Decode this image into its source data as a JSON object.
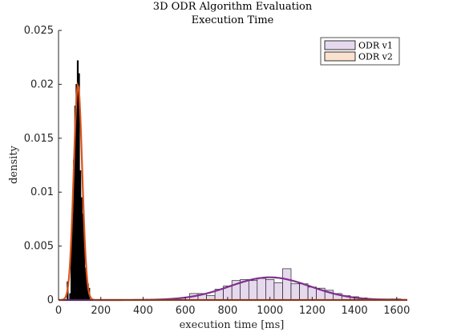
{
  "chart_data": {
    "type": "bar",
    "title": "3D ODR Algorithm Evaluation",
    "subtitle": "Execution Time",
    "xlabel": "execution time [ms]",
    "ylabel": "density",
    "xlim": [
      0,
      1650
    ],
    "ylim": [
      0,
      0.025
    ],
    "x_ticks": [
      0,
      200,
      400,
      600,
      800,
      1000,
      1200,
      1400,
      1600
    ],
    "x_tick_labels": [
      "0",
      "200",
      "400",
      "600",
      "800",
      "1000",
      "1200",
      "1400",
      "1600"
    ],
    "y_ticks": [
      0,
      0.005,
      0.01,
      0.015,
      0.02,
      0.025
    ],
    "y_tick_labels": [
      "0",
      "0.005",
      "0.01",
      "0.015",
      "0.02",
      "0.025"
    ],
    "grid": false,
    "legend": {
      "placement": "top-right",
      "entries": [
        "ODR v1",
        "ODR v2"
      ]
    },
    "series": [
      {
        "name": "ODR v1",
        "kind": "histogram",
        "fill": "#e6d9ee",
        "edge": "#000000",
        "bins": [
          {
            "x0": 620,
            "x1": 660,
            "value": 0.0006
          },
          {
            "x0": 660,
            "x1": 700,
            "value": 0.0006
          },
          {
            "x0": 700,
            "x1": 740,
            "value": 0.0004
          },
          {
            "x0": 740,
            "x1": 780,
            "value": 0.001
          },
          {
            "x0": 780,
            "x1": 820,
            "value": 0.0013
          },
          {
            "x0": 820,
            "x1": 860,
            "value": 0.0018
          },
          {
            "x0": 860,
            "x1": 900,
            "value": 0.0019
          },
          {
            "x0": 900,
            "x1": 940,
            "value": 0.0018
          },
          {
            "x0": 940,
            "x1": 980,
            "value": 0.002
          },
          {
            "x0": 980,
            "x1": 1020,
            "value": 0.0019
          },
          {
            "x0": 1020,
            "x1": 1060,
            "value": 0.0016
          },
          {
            "x0": 1060,
            "x1": 1100,
            "value": 0.0029
          },
          {
            "x0": 1100,
            "x1": 1140,
            "value": 0.0015
          },
          {
            "x0": 1140,
            "x1": 1180,
            "value": 0.0015
          },
          {
            "x0": 1180,
            "x1": 1220,
            "value": 0.0012
          },
          {
            "x0": 1220,
            "x1": 1260,
            "value": 0.0011
          },
          {
            "x0": 1260,
            "x1": 1300,
            "value": 0.0009
          },
          {
            "x0": 1300,
            "x1": 1340,
            "value": 0.0006
          },
          {
            "x0": 1340,
            "x1": 1380,
            "value": 0.0004
          },
          {
            "x0": 1380,
            "x1": 1420,
            "value": 0.0003
          },
          {
            "x0": 1420,
            "x1": 1460,
            "value": 0.0002
          },
          {
            "x0": 1460,
            "x1": 1500,
            "value": 0.0001
          },
          {
            "x0": 1500,
            "x1": 1540,
            "value": 0.0001
          },
          {
            "x0": 1540,
            "x1": 1580,
            "value": 0.0001
          },
          {
            "x0": 1580,
            "x1": 1620,
            "value": 0.0001
          }
        ],
        "fit": {
          "distribution": "normal",
          "mean": 1000,
          "std": 190,
          "color": "#7e2f8e"
        }
      },
      {
        "name": "ODR v2",
        "kind": "histogram",
        "fill": "#000000",
        "legend_fill": "#fbe1d0",
        "edge": "#000000",
        "bins": [
          {
            "x0": 40,
            "x1": 46,
            "value": 0.0017
          },
          {
            "x0": 52,
            "x1": 58,
            "value": 0.0006
          },
          {
            "x0": 58,
            "x1": 64,
            "value": 0.0058
          },
          {
            "x0": 64,
            "x1": 70,
            "value": 0.008
          },
          {
            "x0": 70,
            "x1": 76,
            "value": 0.013
          },
          {
            "x0": 76,
            "x1": 82,
            "value": 0.018
          },
          {
            "x0": 82,
            "x1": 88,
            "value": 0.02
          },
          {
            "x0": 88,
            "x1": 94,
            "value": 0.0222
          },
          {
            "x0": 94,
            "x1": 100,
            "value": 0.021
          },
          {
            "x0": 100,
            "x1": 106,
            "value": 0.012
          },
          {
            "x0": 106,
            "x1": 112,
            "value": 0.0095
          },
          {
            "x0": 112,
            "x1": 118,
            "value": 0.008
          },
          {
            "x0": 118,
            "x1": 124,
            "value": 0.007
          },
          {
            "x0": 124,
            "x1": 130,
            "value": 0.003
          },
          {
            "x0": 130,
            "x1": 136,
            "value": 0.002
          },
          {
            "x0": 136,
            "x1": 142,
            "value": 0.0015
          },
          {
            "x0": 142,
            "x1": 148,
            "value": 0.0011
          }
        ],
        "fit": {
          "distribution": "normal",
          "mean": 92,
          "std": 20,
          "color": "#d95319"
        }
      }
    ]
  }
}
